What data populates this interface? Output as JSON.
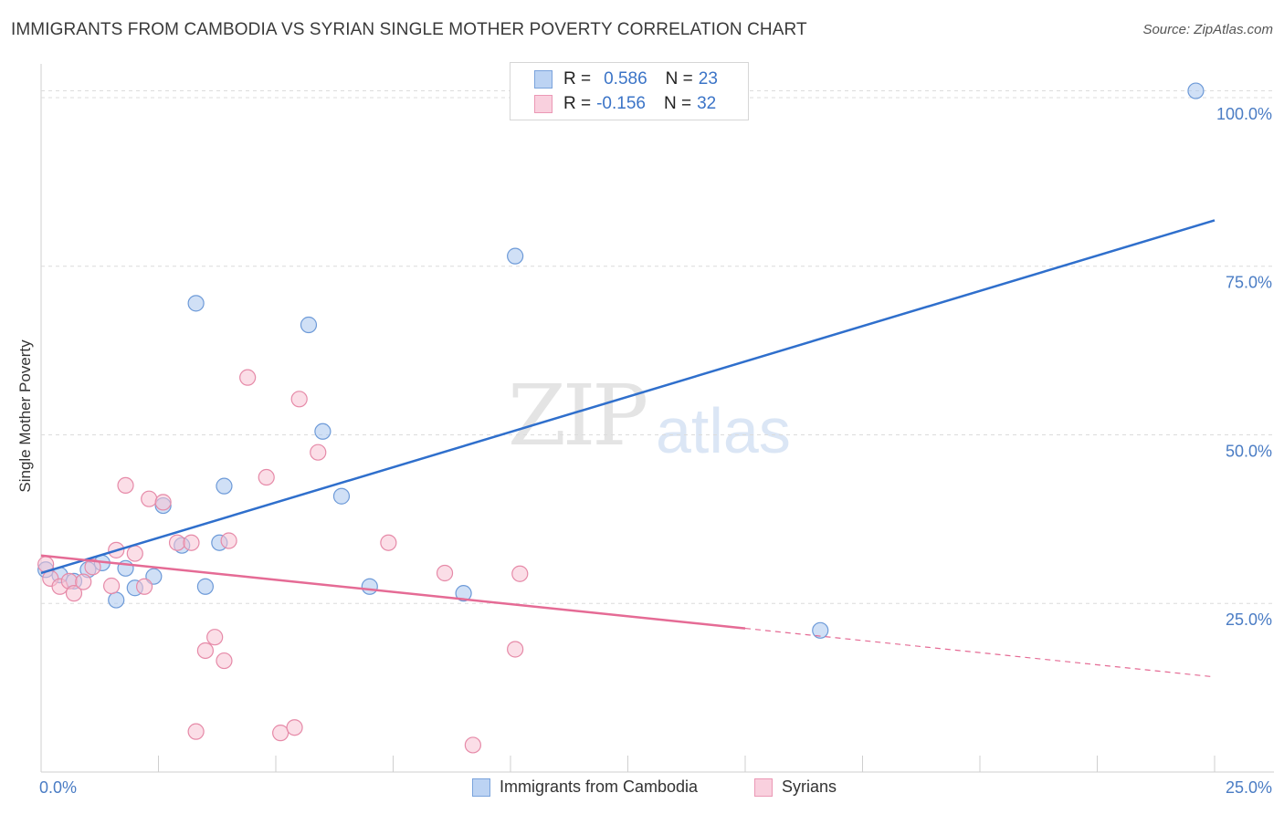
{
  "title": "IMMIGRANTS FROM CAMBODIA VS SYRIAN SINGLE MOTHER POVERTY CORRELATION CHART",
  "source": "Source: ZipAtlas.com",
  "watermark": {
    "zip": "ZIP",
    "atlas": "atlas"
  },
  "legend_stats": [
    {
      "r_label": "R =",
      "r_value": "0.586",
      "n_label": "N =",
      "n_value": "23",
      "color": "#a9c6ef",
      "border": "#6d9ad8"
    },
    {
      "r_label": "R =",
      "r_value": "-0.156",
      "n_label": "N =",
      "n_value": "32",
      "color": "#f7c3d4",
      "border": "#e68aa8"
    }
  ],
  "chart_data": {
    "type": "scatter",
    "title": "IMMIGRANTS FROM CAMBODIA VS SYRIAN SINGLE MOTHER POVERTY CORRELATION CHART",
    "xlabel": "",
    "ylabel": "Single Mother Poverty",
    "xlim": [
      0,
      25
    ],
    "ylim": [
      0,
      105
    ],
    "x_tick_labels": [
      "0.0%",
      "25.0%"
    ],
    "y_ticks": [
      25,
      50,
      75,
      100
    ],
    "y_tick_labels": [
      "25.0%",
      "50.0%",
      "75.0%",
      "100.0%"
    ],
    "grid": true,
    "legend_position": "bottom-center",
    "series": [
      {
        "name": "Immigrants from Cambodia",
        "color": "#a9c6ef",
        "edge": "#6d9ad8",
        "line_color": "#2f6fcc",
        "trend": {
          "x0": 0,
          "y0": 29.5,
          "x1": 25,
          "y1": 81.8,
          "solid_until": 25
        },
        "points": [
          [
            0.1,
            30.0
          ],
          [
            0.4,
            29.2
          ],
          [
            0.7,
            28.3
          ],
          [
            1.3,
            31.0
          ],
          [
            1.0,
            30.0
          ],
          [
            1.6,
            25.5
          ],
          [
            1.8,
            30.2
          ],
          [
            2.0,
            27.3
          ],
          [
            2.4,
            29.0
          ],
          [
            2.6,
            39.5
          ],
          [
            3.0,
            33.6
          ],
          [
            3.3,
            69.5
          ],
          [
            3.5,
            27.5
          ],
          [
            3.8,
            34.0
          ],
          [
            3.9,
            42.4
          ],
          [
            5.7,
            66.3
          ],
          [
            6.0,
            50.5
          ],
          [
            6.4,
            40.9
          ],
          [
            7.0,
            27.5
          ],
          [
            9.0,
            26.5
          ],
          [
            10.1,
            76.5
          ],
          [
            16.6,
            21.0
          ],
          [
            24.6,
            101.0
          ]
        ]
      },
      {
        "name": "Syrians",
        "color": "#f7c3d4",
        "edge": "#e68aa8",
        "line_color": "#e56b95",
        "trend": {
          "x0": 0,
          "y0": 32.1,
          "x1": 25,
          "y1": 14.1,
          "solid_until": 15
        },
        "points": [
          [
            0.1,
            30.8
          ],
          [
            0.2,
            28.7
          ],
          [
            0.4,
            27.5
          ],
          [
            0.6,
            28.3
          ],
          [
            0.7,
            26.5
          ],
          [
            0.9,
            28.2
          ],
          [
            1.1,
            30.4
          ],
          [
            1.5,
            27.6
          ],
          [
            1.6,
            32.9
          ],
          [
            1.8,
            42.5
          ],
          [
            2.0,
            32.4
          ],
          [
            2.2,
            27.5
          ],
          [
            2.3,
            40.5
          ],
          [
            2.6,
            40.0
          ],
          [
            2.9,
            34.0
          ],
          [
            3.2,
            34.0
          ],
          [
            3.3,
            6.0
          ],
          [
            3.5,
            18.0
          ],
          [
            3.7,
            20.0
          ],
          [
            3.9,
            16.5
          ],
          [
            4.0,
            34.3
          ],
          [
            4.4,
            58.5
          ],
          [
            4.8,
            43.7
          ],
          [
            5.1,
            5.8
          ],
          [
            5.4,
            6.6
          ],
          [
            5.5,
            55.3
          ],
          [
            5.9,
            47.4
          ],
          [
            7.4,
            34.0
          ],
          [
            8.6,
            29.5
          ],
          [
            9.2,
            4.0
          ],
          [
            10.1,
            18.2
          ],
          [
            10.2,
            29.4
          ]
        ]
      }
    ]
  }
}
